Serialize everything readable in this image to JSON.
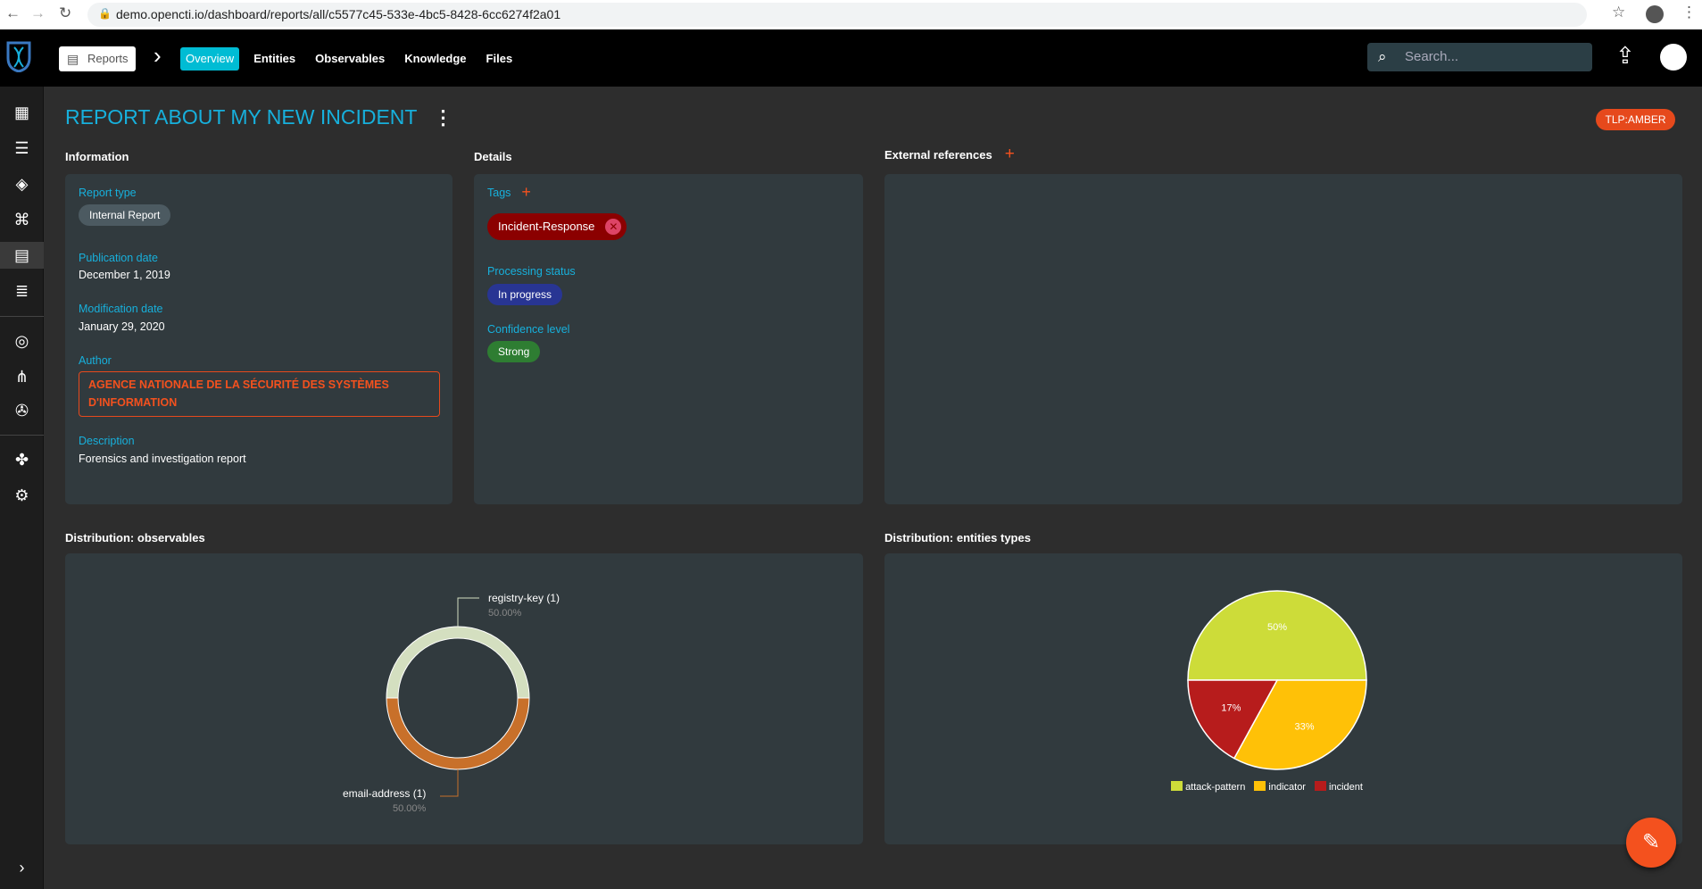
{
  "browser": {
    "url": "demo.opencti.io/dashboard/reports/all/c5577c45-533e-4bc5-8428-6cc6274f2a01"
  },
  "topbar": {
    "reports_label": "Reports",
    "tabs": [
      "Overview",
      "Entities",
      "Observables",
      "Knowledge",
      "Files"
    ],
    "search_placeholder": "Search..."
  },
  "report": {
    "title": "REPORT ABOUT MY NEW INCIDENT",
    "tlp": "TLP:AMBER"
  },
  "information": {
    "section": "Information",
    "report_type_label": "Report type",
    "report_type": "Internal Report",
    "publication_date_label": "Publication date",
    "publication_date": "December 1, 2019",
    "modification_date_label": "Modification date",
    "modification_date": "January 29, 2020",
    "author_label": "Author",
    "author": "AGENCE NATIONALE DE LA SÉCURITÉ DES SYSTÈMES D'INFORMATION",
    "description_label": "Description",
    "description": "Forensics and investigation report"
  },
  "details": {
    "section": "Details",
    "tags_label": "Tags",
    "tag": "Incident-Response",
    "processing_status_label": "Processing status",
    "processing_status": "In progress",
    "confidence_label": "Confidence level",
    "confidence": "Strong"
  },
  "external_references": {
    "section": "External references"
  },
  "chart_data": [
    {
      "type": "pie",
      "title": "Distribution: observables",
      "donut": true,
      "labels": [
        "registry-key (1)",
        "email-address (1)"
      ],
      "values": [
        1,
        1
      ],
      "percents": [
        "50.00%",
        "50.00%"
      ],
      "colors": [
        "#d4dfc0",
        "#c8702a"
      ]
    },
    {
      "type": "pie",
      "title": "Distribution: entities types",
      "labels": [
        "attack-pattern",
        "indicator",
        "incident"
      ],
      "values": [
        50,
        33,
        17
      ],
      "data_labels": [
        "50%",
        "33%",
        "17%"
      ],
      "colors": [
        "#cddc39",
        "#ffc107",
        "#b71c1c"
      ],
      "legend": "bottom"
    }
  ]
}
